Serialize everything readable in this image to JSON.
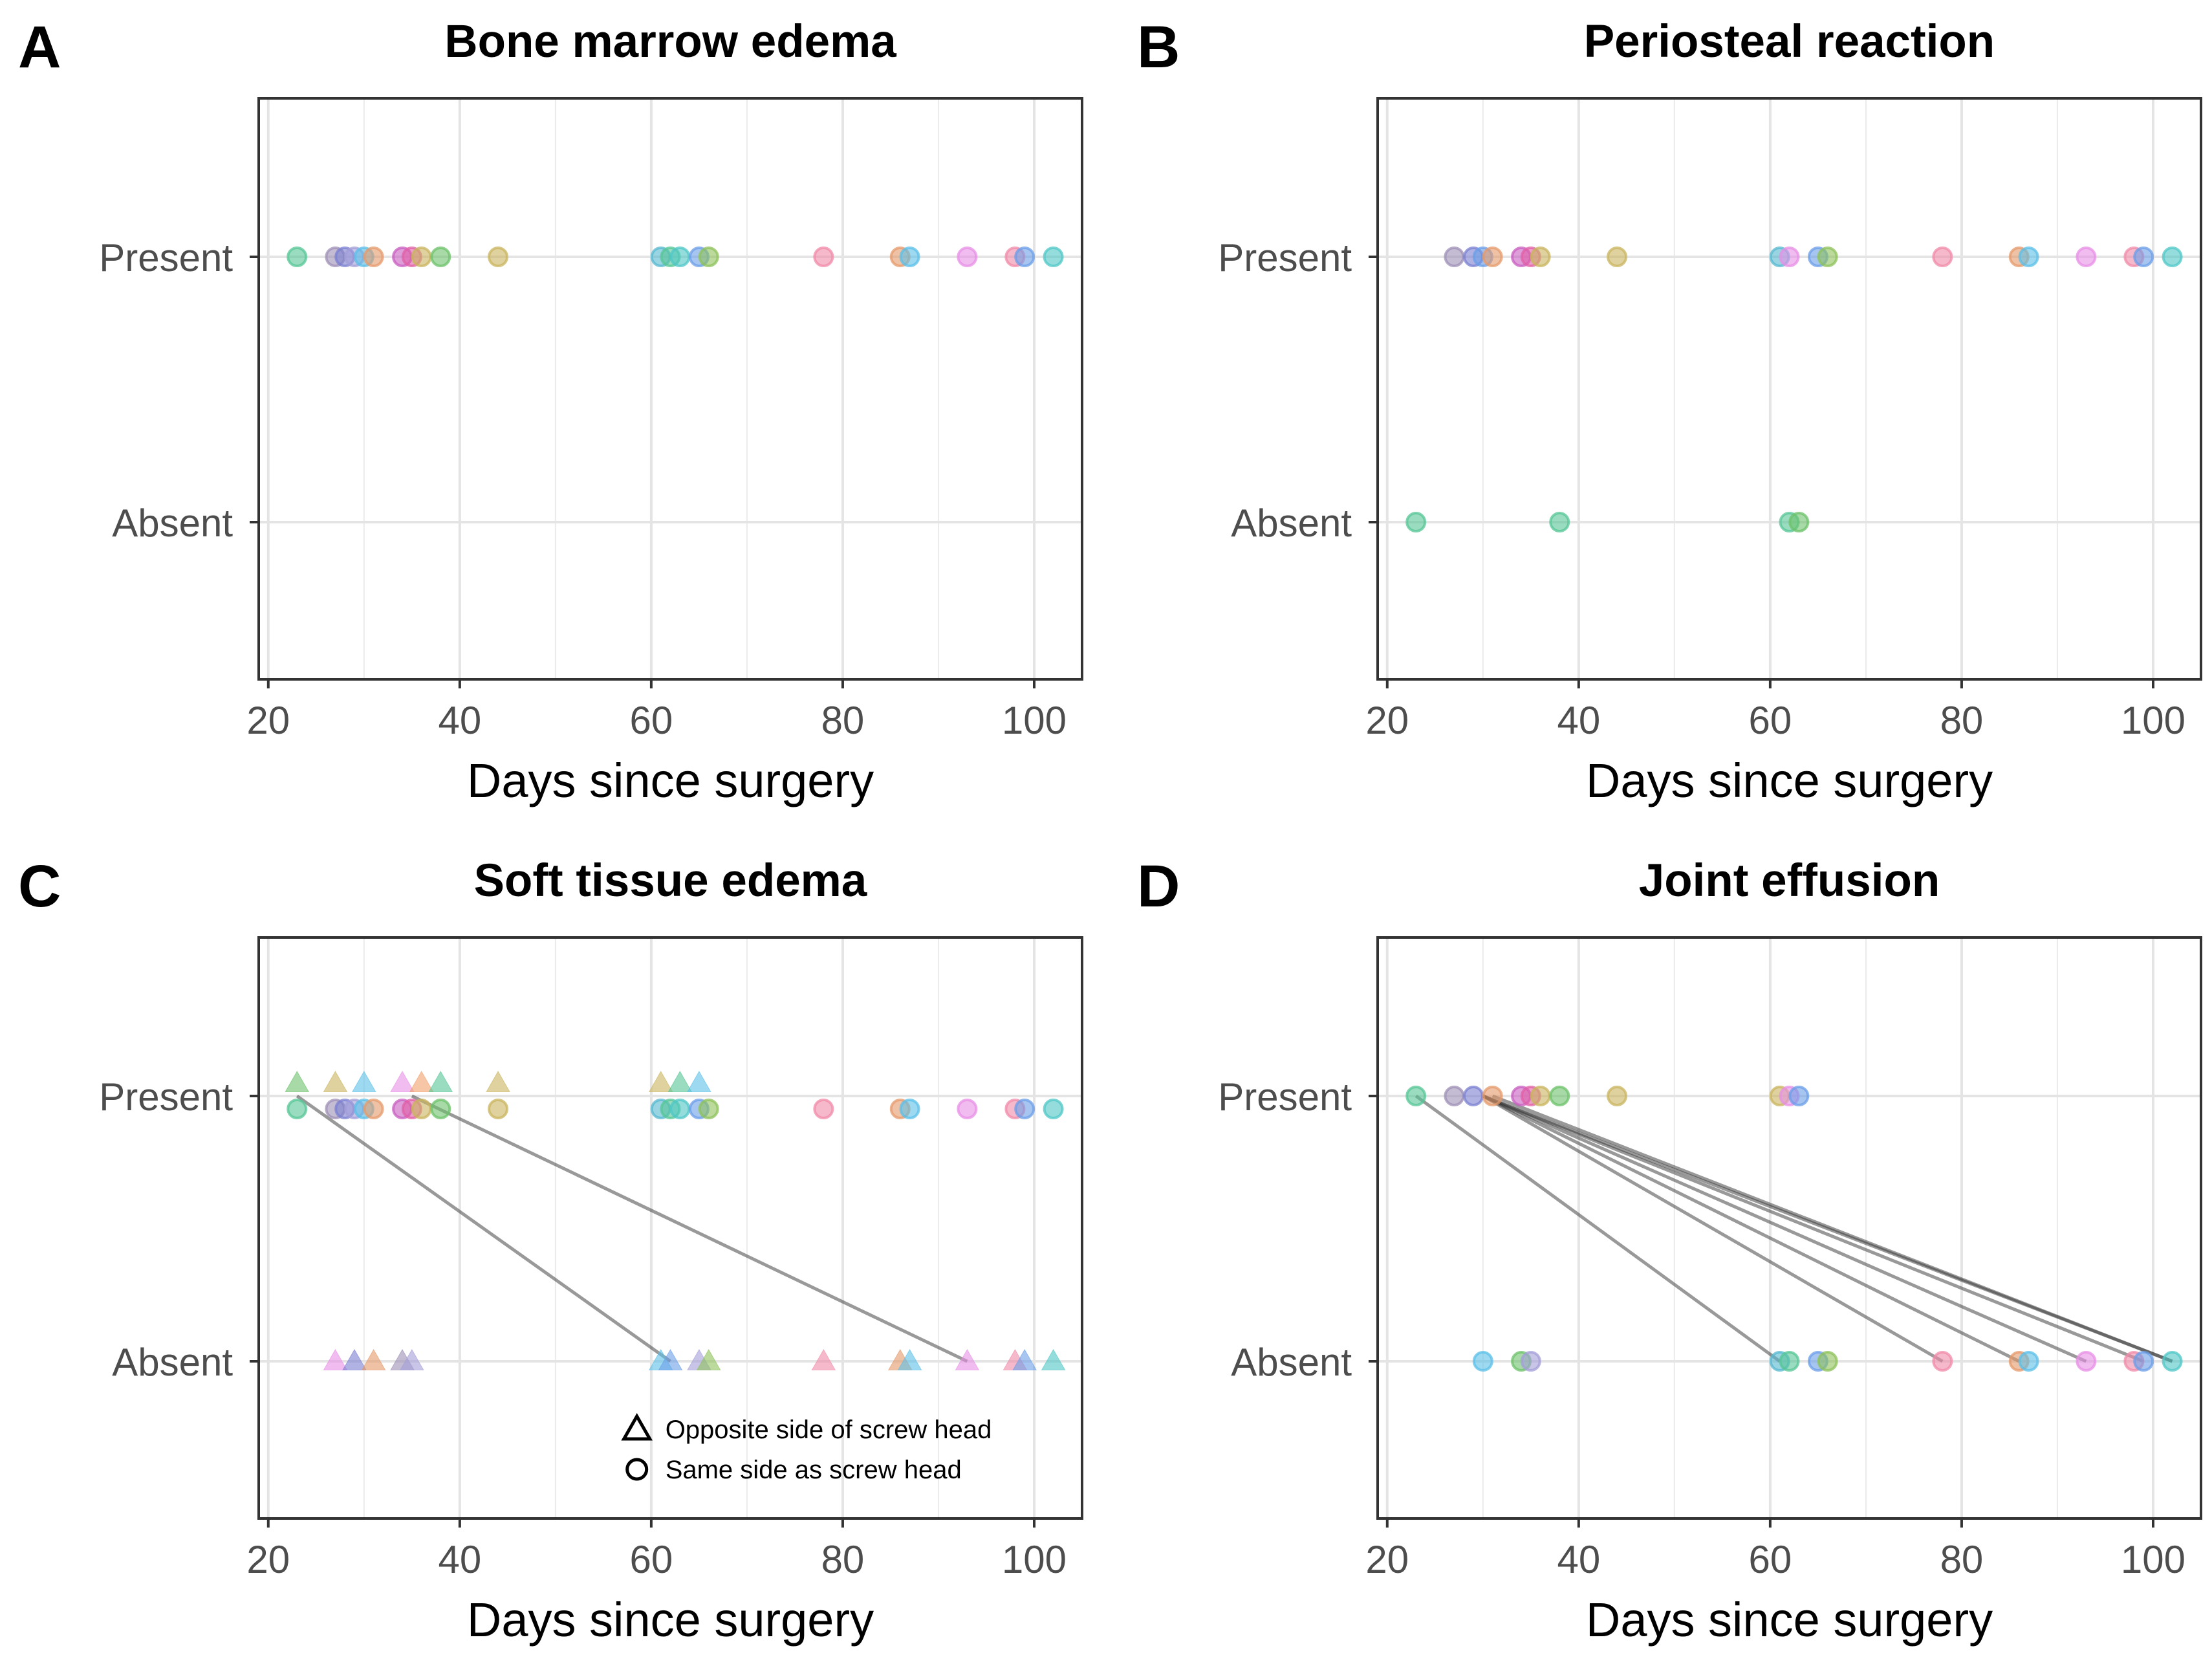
{
  "figure": {
    "xlabel": "Days since surgery",
    "xlim": [
      19,
      105
    ],
    "xticks": [
      20,
      40,
      60,
      80,
      100
    ],
    "categories": [
      "Present",
      "Absent"
    ],
    "palette": [
      "#56c596",
      "#9d8fb5",
      "#c9b45e",
      "#e39ac1",
      "#7a7fd0",
      "#e59a6b",
      "#c85dc0",
      "#6cc16a",
      "#55b8cf",
      "#f08aa8",
      "#6b9ee8",
      "#e78fe6",
      "#4fc7c7",
      "#f0a06b",
      "#5bbfe8",
      "#a39ed8",
      "#e05fa6",
      "#8ec25a"
    ],
    "legend": {
      "triangle_label": "Opposite side of screw head",
      "circle_label": "Same side as screw head"
    }
  },
  "chart_data": [
    {
      "type": "scatter",
      "panel_letter": "A",
      "title": "Bone marrow edema",
      "series": [
        {
          "name": "Present",
          "shape": "circle",
          "x": [
            23,
            27,
            28,
            29,
            30,
            31,
            34,
            35,
            36,
            38,
            44,
            61,
            62,
            63,
            65,
            66,
            78,
            86,
            87,
            93,
            98,
            99,
            102
          ],
          "c": [
            0,
            1,
            4,
            15,
            14,
            5,
            6,
            16,
            2,
            7,
            2,
            8,
            0,
            12,
            10,
            17,
            9,
            5,
            14,
            11,
            9,
            10,
            12
          ]
        }
      ],
      "segments": []
    },
    {
      "type": "scatter",
      "panel_letter": "B",
      "title": "Periosteal reaction",
      "series": [
        {
          "name": "Present",
          "shape": "circle",
          "x": [
            27,
            29,
            30,
            31,
            34,
            35,
            36,
            44,
            61,
            62,
            65,
            66,
            78,
            86,
            87,
            93,
            98,
            99,
            102
          ],
          "c": [
            1,
            4,
            10,
            5,
            6,
            16,
            2,
            2,
            8,
            11,
            10,
            17,
            9,
            5,
            14,
            11,
            9,
            10,
            12
          ]
        },
        {
          "name": "Absent",
          "shape": "circle",
          "x": [
            23,
            38,
            62,
            63
          ],
          "c": [
            0,
            0,
            0,
            7
          ]
        }
      ],
      "segments": []
    },
    {
      "type": "scatter",
      "panel_letter": "C",
      "title": "Soft tissue edema",
      "series": [
        {
          "name": "Present (same side)",
          "category": "Present",
          "shape": "circle",
          "x": [
            23,
            27,
            28,
            29,
            30,
            31,
            34,
            35,
            36,
            38,
            44,
            61,
            62,
            63,
            65,
            66,
            78,
            86,
            87,
            93,
            98,
            99,
            102
          ],
          "c": [
            0,
            1,
            4,
            15,
            14,
            5,
            6,
            16,
            2,
            7,
            2,
            8,
            0,
            12,
            10,
            17,
            9,
            5,
            14,
            11,
            9,
            10,
            12
          ]
        },
        {
          "name": "Present (opposite side)",
          "category": "Present",
          "shape": "triangle",
          "x": [
            23,
            27,
            30,
            34,
            36,
            38,
            44,
            61,
            63,
            65
          ],
          "c": [
            7,
            2,
            14,
            11,
            13,
            0,
            2,
            2,
            0,
            14
          ]
        },
        {
          "name": "Absent (opposite side)",
          "category": "Absent",
          "shape": "triangle",
          "x": [
            27,
            29,
            31,
            34,
            35,
            61,
            62,
            65,
            66,
            78,
            86,
            87,
            93,
            98,
            99,
            102
          ],
          "c": [
            11,
            4,
            5,
            1,
            15,
            14,
            10,
            15,
            17,
            9,
            5,
            14,
            11,
            9,
            10,
            12
          ]
        }
      ],
      "segments": [
        {
          "from": [
            23,
            "Present"
          ],
          "to": [
            62,
            "Absent"
          ]
        },
        {
          "from": [
            35,
            "Present"
          ],
          "to": [
            93,
            "Absent"
          ]
        }
      ]
    },
    {
      "type": "scatter",
      "panel_letter": "D",
      "title": "Joint effusion",
      "series": [
        {
          "name": "Present",
          "shape": "circle",
          "x": [
            23,
            27,
            29,
            31,
            34,
            35,
            36,
            38,
            44,
            61,
            62,
            63
          ],
          "c": [
            0,
            1,
            4,
            5,
            6,
            16,
            2,
            7,
            2,
            2,
            11,
            10
          ]
        },
        {
          "name": "Absent",
          "shape": "circle",
          "x": [
            30,
            34,
            35,
            61,
            62,
            65,
            66,
            78,
            86,
            87,
            93,
            98,
            99,
            102
          ],
          "c": [
            14,
            7,
            15,
            8,
            0,
            10,
            17,
            9,
            5,
            14,
            11,
            9,
            10,
            12
          ]
        }
      ],
      "segments": [
        {
          "from": [
            23,
            "Present"
          ],
          "to": [
            61,
            "Absent"
          ]
        },
        {
          "from": [
            30,
            "Present"
          ],
          "to": [
            78,
            "Absent"
          ]
        },
        {
          "from": [
            30,
            "Present"
          ],
          "to": [
            86,
            "Absent"
          ]
        },
        {
          "from": [
            30,
            "Present"
          ],
          "to": [
            93,
            "Absent"
          ]
        },
        {
          "from": [
            30,
            "Present"
          ],
          "to": [
            99,
            "Absent"
          ]
        },
        {
          "from": [
            30,
            "Present"
          ],
          "to": [
            102,
            "Absent"
          ]
        },
        {
          "from": [
            31,
            "Present"
          ],
          "to": [
            102,
            "Absent"
          ]
        }
      ]
    }
  ]
}
